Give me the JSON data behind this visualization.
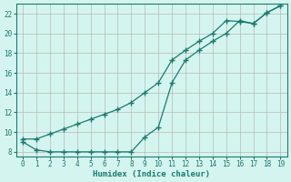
{
  "xlabel": "Humidex (Indice chaleur)",
  "x": [
    0,
    1,
    2,
    3,
    4,
    5,
    6,
    7,
    8,
    9,
    10,
    11,
    12,
    13,
    14,
    15,
    16,
    17,
    18,
    19
  ],
  "upper_y": [
    9.3,
    9.3,
    9.8,
    10.3,
    10.8,
    11.3,
    11.8,
    12.3,
    13.0,
    14.0,
    15.0,
    17.3,
    18.3,
    19.2,
    20.0,
    21.3,
    21.2,
    21.0,
    22.1,
    22.8
  ],
  "lower_y": [
    9.0,
    8.2,
    8.0,
    8.0,
    8.0,
    8.0,
    8.0,
    8.0,
    8.0,
    9.5,
    10.5,
    15.0,
    17.3,
    18.3,
    19.2,
    20.0,
    21.3,
    21.0,
    22.1,
    22.8
  ],
  "line_color": "#1a7a6e",
  "bg_color": "#d4f5ef",
  "grid_color": "#b8b8b8",
  "ylim": [
    7.5,
    23.0
  ],
  "xlim": [
    -0.5,
    19.5
  ],
  "yticks": [
    8,
    10,
    12,
    14,
    16,
    18,
    20,
    22
  ],
  "xticks": [
    0,
    1,
    2,
    3,
    4,
    5,
    6,
    7,
    8,
    9,
    10,
    11,
    12,
    13,
    14,
    15,
    16,
    17,
    18,
    19
  ]
}
